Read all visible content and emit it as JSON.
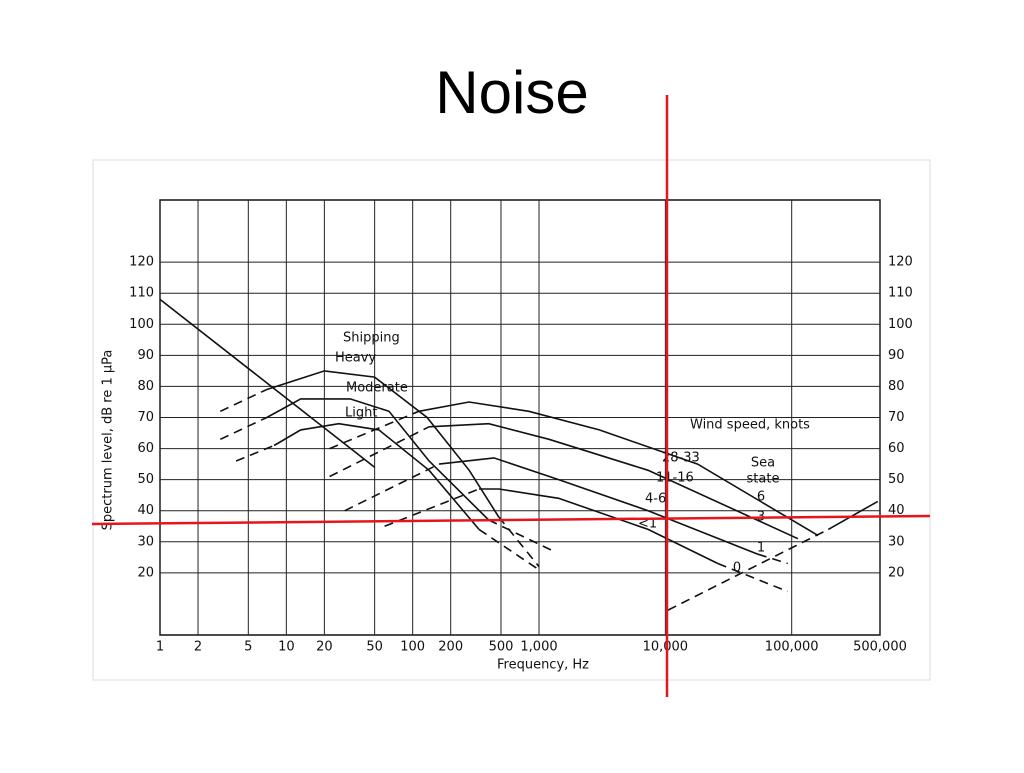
{
  "chart_data": {
    "type": "line",
    "title": "Noise",
    "xlabel": "Frequency, Hz",
    "ylabel": "Spectrum level, dB re 1 μPa",
    "xlog": true,
    "xlim": [
      1,
      500000
    ],
    "ylim": [
      0,
      140
    ],
    "grid": true,
    "color": "#111111",
    "xticks": [
      1,
      2,
      5,
      10,
      20,
      50,
      100,
      200,
      500,
      {
        "value": 1000,
        "label": "1,000"
      },
      {
        "value": 10000,
        "label": "10,000"
      },
      {
        "value": 100000,
        "label": "100,000"
      },
      {
        "value": 500000,
        "label": "500,000"
      }
    ],
    "yticks": [
      20,
      30,
      40,
      50,
      60,
      70,
      80,
      90,
      100,
      110,
      120
    ],
    "series": [
      {
        "x": [
          1,
          50
        ],
        "values": [
          108,
          54
        ],
        "dashed": false
      },
      {
        "x": [
          3,
          7
        ],
        "values": [
          72,
          79
        ],
        "dashed": true
      },
      {
        "name": "Heavy",
        "x": [
          7,
          20,
          50,
          130,
          280,
          480
        ],
        "values": [
          79,
          85,
          83,
          70,
          53,
          38
        ],
        "dashed": false
      },
      {
        "x": [
          480,
          1000
        ],
        "values": [
          38,
          22
        ],
        "dashed": true
      },
      {
        "x": [
          3,
          7
        ],
        "values": [
          63,
          70
        ],
        "dashed": true
      },
      {
        "name": "Moderate",
        "x": [
          7,
          13,
          32,
          65,
          135,
          400
        ],
        "values": [
          70,
          76,
          76,
          72,
          56,
          37
        ],
        "dashed": false
      },
      {
        "x": [
          400,
          1300
        ],
        "values": [
          37,
          27
        ],
        "dashed": true
      },
      {
        "x": [
          4,
          8
        ],
        "values": [
          56,
          61
        ],
        "dashed": true
      },
      {
        "name": "Light",
        "x": [
          8,
          13,
          26,
          54,
          135,
          335
        ],
        "values": [
          61,
          66,
          68,
          66,
          53,
          34
        ],
        "dashed": false
      },
      {
        "x": [
          335,
          1000
        ],
        "values": [
          34,
          21
        ],
        "dashed": true
      },
      {
        "x": [
          22,
          112
        ],
        "values": [
          60,
          72
        ],
        "dashed": true
      },
      {
        "name": "28-33",
        "x": [
          112,
          279,
          830,
          3000,
          18000,
          162000
        ],
        "values": [
          72,
          75,
          72,
          66,
          55,
          32
        ],
        "dashed": false
      },
      {
        "x": [
          22,
          135
        ],
        "values": [
          51,
          67
        ],
        "dashed": true
      },
      {
        "name": "11-16",
        "x": [
          135,
          400,
          1200,
          7300,
          112000
        ],
        "values": [
          67,
          68,
          63,
          53,
          31
        ],
        "dashed": false
      },
      {
        "x": [
          29,
          162
        ],
        "values": [
          40,
          55
        ],
        "dashed": true
      },
      {
        "name": "4-6",
        "x": [
          162,
          440,
          1430,
          7300,
          54000
        ],
        "values": [
          55,
          57,
          50,
          40,
          26
        ],
        "dashed": false
      },
      {
        "x": [
          54000,
          93000
        ],
        "values": [
          26,
          23
        ],
        "dashed": true
      },
      {
        "x": [
          60,
          335
        ],
        "values": [
          35,
          47
        ],
        "dashed": true
      },
      {
        "name": "<1",
        "x": [
          335,
          480,
          1430,
          7300,
          26000
        ],
        "values": [
          47,
          47,
          44,
          34,
          23
        ],
        "dashed": false
      },
      {
        "x": [
          26000,
          93000
        ],
        "values": [
          23,
          14
        ],
        "dashed": true
      },
      {
        "x": [
          10500,
          195000
        ],
        "values": [
          8,
          34
        ],
        "dashed": true
      },
      {
        "x": [
          195000,
          480000
        ],
        "values": [
          34,
          43
        ],
        "dashed": false
      }
    ],
    "annotations": [
      "Shipping",
      "Wind speed, knots",
      "Sea",
      "state",
      "6",
      "3",
      "1",
      "0"
    ]
  }
}
